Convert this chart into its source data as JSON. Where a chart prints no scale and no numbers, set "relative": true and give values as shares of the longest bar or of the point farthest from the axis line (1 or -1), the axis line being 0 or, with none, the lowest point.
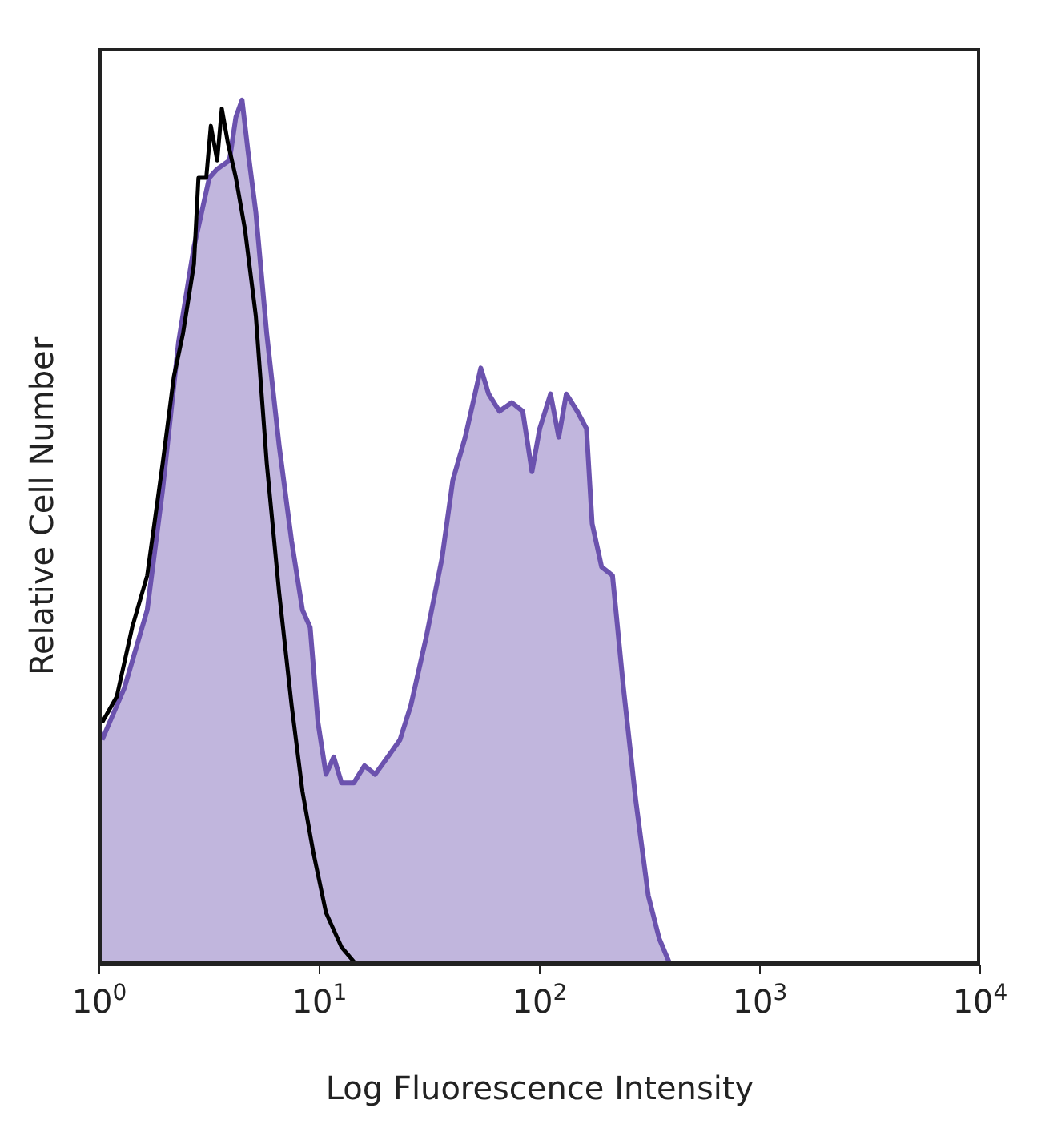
{
  "chart_data": {
    "type": "area",
    "xlabel": "Log Fluorescence Intensity",
    "ylabel": "Relative Cell Number",
    "log": "x",
    "relative": true,
    "xlim": [
      1,
      10000
    ],
    "xticks": [
      {
        "value": 1,
        "label": "10$^{0}$"
      },
      {
        "value": 10,
        "label": "10$^{1}$"
      },
      {
        "value": 100,
        "label": "10$^{2}$"
      },
      {
        "value": 1000,
        "label": "10$^{3}$"
      },
      {
        "value": 10000,
        "label": "10$^{4}$"
      }
    ],
    "series": [
      {
        "color": "#6b52ae",
        "x": [
          1.03,
          1.3,
          1.65,
          1.94,
          2.29,
          2.69,
          3.16,
          3.43,
          3.9,
          4.17,
          4.45,
          4.74,
          5.14,
          5.76,
          6.56,
          7.47,
          8.37,
          9.07,
          9.84,
          10.7,
          11.6,
          12.6,
          14.3,
          16,
          17.9,
          20.4,
          23.2,
          26,
          30.6,
          36,
          40.3,
          45.9,
          49.8,
          54,
          58.6,
          65.6,
          74.7,
          83.7,
          92.2,
          100,
          112,
          122,
          132,
          148,
          163,
          173,
          191,
          214,
          240,
          273,
          311,
          349,
          391,
          444,
          10000
        ],
        "values": [
          0.26,
          0.32,
          0.41,
          0.55,
          0.72,
          0.83,
          0.91,
          0.92,
          0.93,
          0.98,
          1,
          0.94,
          0.87,
          0.73,
          0.6,
          0.49,
          0.41,
          0.39,
          0.28,
          0.22,
          0.24,
          0.21,
          0.21,
          0.23,
          0.22,
          0.24,
          0.26,
          0.3,
          0.38,
          0.47,
          0.56,
          0.61,
          0.65,
          0.69,
          0.66,
          0.64,
          0.65,
          0.64,
          0.57,
          0.62,
          0.66,
          0.61,
          0.66,
          0.64,
          0.62,
          0.51,
          0.46,
          0.45,
          0.32,
          0.19,
          0.08,
          0.03,
          0,
          0,
          0
        ]
      },
      {
        "type": "line",
        "color": "#000000",
        "x": [
          1.03,
          1.2,
          1.41,
          1.65,
          1.94,
          2.18,
          2.4,
          2.69,
          2.82,
          3.06,
          3.21,
          3.43,
          3.6,
          3.84,
          4.17,
          4.59,
          5.14,
          5.76,
          6.56,
          7.47,
          8.37,
          9.37,
          10.7,
          12.6,
          14.7,
          20.4,
          10000
        ],
        "values": [
          0.28,
          0.31,
          0.39,
          0.45,
          0.58,
          0.68,
          0.73,
          0.81,
          0.91,
          0.91,
          0.97,
          0.93,
          0.99,
          0.95,
          0.91,
          0.85,
          0.75,
          0.58,
          0.43,
          0.3,
          0.2,
          0.13,
          0.06,
          0.02,
          0,
          0,
          0
        ]
      }
    ]
  }
}
